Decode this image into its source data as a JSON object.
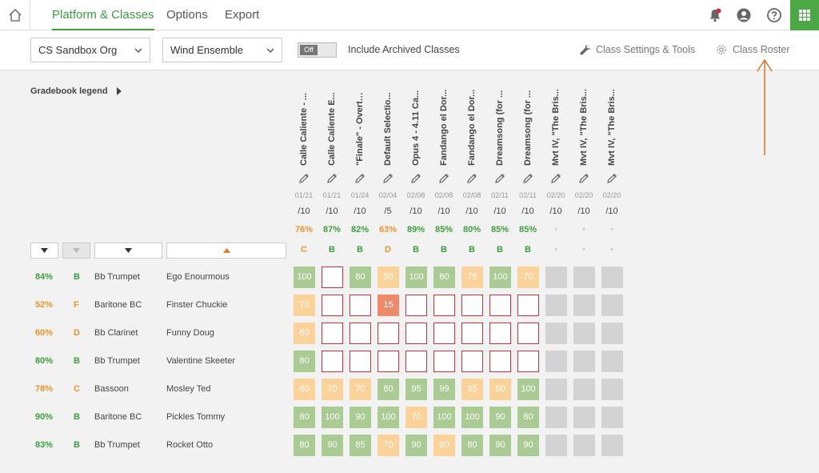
{
  "nav": {
    "tabs": [
      {
        "label": "Platform & Classes",
        "active": true
      },
      {
        "label": "Options",
        "active": false
      },
      {
        "label": "Export",
        "active": false
      }
    ]
  },
  "filters": {
    "org": "CS Sandbox Org",
    "class": "Wind Ensemble",
    "archived_toggle": "Off",
    "archived_label": "Include Archived Classes",
    "settings_label": "Class Settings & Tools",
    "roster_label": "Class Roster"
  },
  "gradebook": {
    "legend_label": "Gradebook legend",
    "assignments": [
      {
        "title": "Calle Caliente - ...",
        "date": "01/21",
        "points": "/10",
        "avg": "76%",
        "grade": "C",
        "color": "orange"
      },
      {
        "title": "Calle Caliente E...",
        "date": "01/21",
        "points": "/10",
        "avg": "87%",
        "grade": "B",
        "color": "green"
      },
      {
        "title": "\"Finale\" - Overtu...",
        "date": "01/24",
        "points": "/10",
        "avg": "82%",
        "grade": "B",
        "color": "green"
      },
      {
        "title": "Default Selectio...",
        "date": "02/04",
        "points": "/5",
        "avg": "63%",
        "grade": "D",
        "color": "orange"
      },
      {
        "title": "Opus 4 - 4.11 Ca...",
        "date": "02/08",
        "points": "/10",
        "avg": "89%",
        "grade": "B",
        "color": "green"
      },
      {
        "title": "Fandango el Dor...",
        "date": "02/08",
        "points": "/10",
        "avg": "85%",
        "grade": "B",
        "color": "green"
      },
      {
        "title": "Fandango el Dor...",
        "date": "02/08",
        "points": "/10",
        "avg": "80%",
        "grade": "B",
        "color": "green"
      },
      {
        "title": "Dreamsong (for ...",
        "date": "02/11",
        "points": "/10",
        "avg": "85%",
        "grade": "B",
        "color": "green"
      },
      {
        "title": "Dreamsong (for ...",
        "date": "02/11",
        "points": "/10",
        "avg": "85%",
        "grade": "B",
        "color": "green"
      },
      {
        "title": "Mvt IV, \"The Bris...",
        "date": "02/20",
        "points": "/10",
        "avg": "•",
        "grade": "•",
        "color": "grey"
      },
      {
        "title": "Mvt IV, \"The Bris...",
        "date": "02/20",
        "points": "/10",
        "avg": "•",
        "grade": "•",
        "color": "grey"
      },
      {
        "title": "Mvt IV, \"The Bris...",
        "date": "02/20",
        "points": "/10",
        "avg": "•",
        "grade": "•",
        "color": "grey"
      }
    ],
    "students": [
      {
        "pct": "84%",
        "letter": "B",
        "color": "green",
        "instrument": "Bb Trumpet",
        "name": "Ego Enourmous",
        "scores": [
          [
            "100",
            "g"
          ],
          [
            "",
            "e"
          ],
          [
            "80",
            "g"
          ],
          [
            "50",
            "o"
          ],
          [
            "100",
            "g"
          ],
          [
            "80",
            "g"
          ],
          [
            "75",
            "o"
          ],
          [
            "100",
            "g"
          ],
          [
            "70",
            "o"
          ],
          [
            "",
            "x"
          ],
          [
            "",
            "x"
          ],
          [
            "",
            "x"
          ]
        ]
      },
      {
        "pct": "52%",
        "letter": "F",
        "color": "orange",
        "instrument": "Baritone BC",
        "name": "Finster Chuckie",
        "scores": [
          [
            "70",
            "o"
          ],
          [
            "",
            "e"
          ],
          [
            "",
            "e"
          ],
          [
            "15",
            "r"
          ],
          [
            "",
            "e"
          ],
          [
            "",
            "e"
          ],
          [
            "",
            "e"
          ],
          [
            "",
            "e"
          ],
          [
            "",
            "e"
          ],
          [
            "",
            "x"
          ],
          [
            "",
            "x"
          ],
          [
            "",
            "x"
          ]
        ]
      },
      {
        "pct": "60%",
        "letter": "D",
        "color": "orange",
        "instrument": "Bb Clarinet",
        "name": "Funny Doug",
        "scores": [
          [
            "60",
            "o"
          ],
          [
            "",
            "e"
          ],
          [
            "",
            "e"
          ],
          [
            "",
            "e"
          ],
          [
            "",
            "e"
          ],
          [
            "",
            "e"
          ],
          [
            "",
            "e"
          ],
          [
            "",
            "e"
          ],
          [
            "",
            "e"
          ],
          [
            "",
            "x"
          ],
          [
            "",
            "x"
          ],
          [
            "",
            "x"
          ]
        ]
      },
      {
        "pct": "80%",
        "letter": "B",
        "color": "green",
        "instrument": "Bb Trumpet",
        "name": "Valentine Skeeter",
        "scores": [
          [
            "80",
            "g"
          ],
          [
            "",
            "e"
          ],
          [
            "",
            "e"
          ],
          [
            "",
            "e"
          ],
          [
            "",
            "e"
          ],
          [
            "",
            "e"
          ],
          [
            "",
            "e"
          ],
          [
            "",
            "e"
          ],
          [
            "",
            "e"
          ],
          [
            "",
            "x"
          ],
          [
            "",
            "x"
          ],
          [
            "",
            "x"
          ]
        ]
      },
      {
        "pct": "78%",
        "letter": "C",
        "color": "orange",
        "instrument": "Bassoon",
        "name": "Mosley Ted",
        "scores": [
          [
            "80",
            "o"
          ],
          [
            "70",
            "o"
          ],
          [
            "70",
            "o"
          ],
          [
            "80",
            "g"
          ],
          [
            "95",
            "g"
          ],
          [
            "99",
            "g"
          ],
          [
            "65",
            "o"
          ],
          [
            "60",
            "o"
          ],
          [
            "100",
            "g"
          ],
          [
            "",
            "x"
          ],
          [
            "",
            "x"
          ],
          [
            "",
            "x"
          ]
        ]
      },
      {
        "pct": "90%",
        "letter": "B",
        "color": "green",
        "instrument": "Baritone BC",
        "name": "Pickles Tommy",
        "scores": [
          [
            "80",
            "g"
          ],
          [
            "100",
            "g"
          ],
          [
            "90",
            "g"
          ],
          [
            "100",
            "g"
          ],
          [
            "70",
            "o"
          ],
          [
            "100",
            "g"
          ],
          [
            "100",
            "g"
          ],
          [
            "90",
            "g"
          ],
          [
            "80",
            "g"
          ],
          [
            "",
            "x"
          ],
          [
            "",
            "x"
          ],
          [
            "",
            "x"
          ]
        ]
      },
      {
        "pct": "83%",
        "letter": "B",
        "color": "green",
        "instrument": "Bb Trumpet",
        "name": "Rocket Otto",
        "scores": [
          [
            "80",
            "g"
          ],
          [
            "90",
            "g"
          ],
          [
            "85",
            "g"
          ],
          [
            "70",
            "o"
          ],
          [
            "90",
            "g"
          ],
          [
            "60",
            "o"
          ],
          [
            "80",
            "g"
          ],
          [
            "90",
            "g"
          ],
          [
            "90",
            "g"
          ],
          [
            "",
            "x"
          ],
          [
            "",
            "x"
          ],
          [
            "",
            "x"
          ]
        ]
      }
    ]
  },
  "colors": {
    "accent": "#3e9c3e",
    "green_cell": "#aacb93",
    "orange_cell": "#fbd39a",
    "red_cell": "#ee8a6a",
    "empty_border": "#c8323a",
    "annotation": "#e8772e"
  }
}
